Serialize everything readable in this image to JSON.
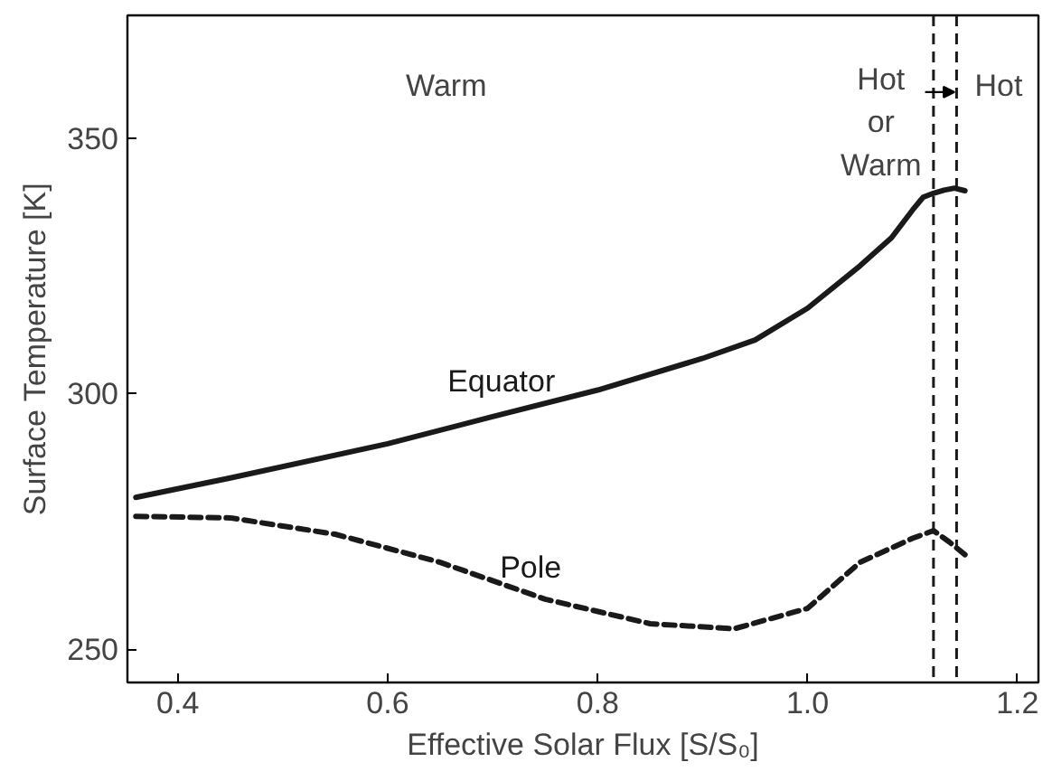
{
  "chart_data": {
    "type": "line",
    "xlabel": "Effective Solar Flux [S/S₀]",
    "ylabel": "Surface Temperature [K]",
    "xlim": [
      0.352,
      1.22
    ],
    "ylim": [
      243.5,
      374
    ],
    "xticks": [
      0.4,
      0.6,
      0.8,
      {
        "value": 1,
        "label": "1.0"
      },
      1.2
    ],
    "yticks": [
      250,
      300,
      350
    ],
    "grid": false,
    "legend": false,
    "series": [
      {
        "name": "Equator",
        "color": "#1a1a1a",
        "line_style": "solid",
        "x": [
          0.36,
          0.45,
          0.6,
          0.7,
          0.8,
          0.9,
          0.95,
          1.0,
          1.05,
          1.08,
          1.1,
          1.11,
          1.12,
          1.13,
          1.14,
          1.15
        ],
        "values": [
          279.7,
          283.5,
          290.2,
          295.5,
          300.7,
          306.9,
          310.5,
          316.7,
          325,
          330.5,
          335.9,
          338.4,
          339.2,
          339.8,
          340.2,
          339.7
        ]
      },
      {
        "name": "Pole",
        "color": "#1a1a1a",
        "line_style": "dashed",
        "x": [
          0.36,
          0.45,
          0.55,
          0.65,
          0.75,
          0.85,
          0.93,
          1.0,
          1.05,
          1.1,
          1.12,
          1.135,
          1.15
        ],
        "values": [
          276,
          275.7,
          272.5,
          267,
          259.8,
          255,
          254,
          258,
          267,
          271.7,
          273.2,
          271,
          268.5
        ]
      }
    ],
    "ref_lines": [
      {
        "axis": "x",
        "value": 1.12,
        "label": null,
        "color": "#1a1a1a",
        "line_style": "dashed"
      },
      {
        "axis": "x",
        "value": 1.142,
        "label": null,
        "color": "#1a1a1a",
        "line_style": "dashed"
      }
    ],
    "annotations": [
      "Warm",
      "Hot\nor\nWarm",
      "Hot"
    ]
  }
}
